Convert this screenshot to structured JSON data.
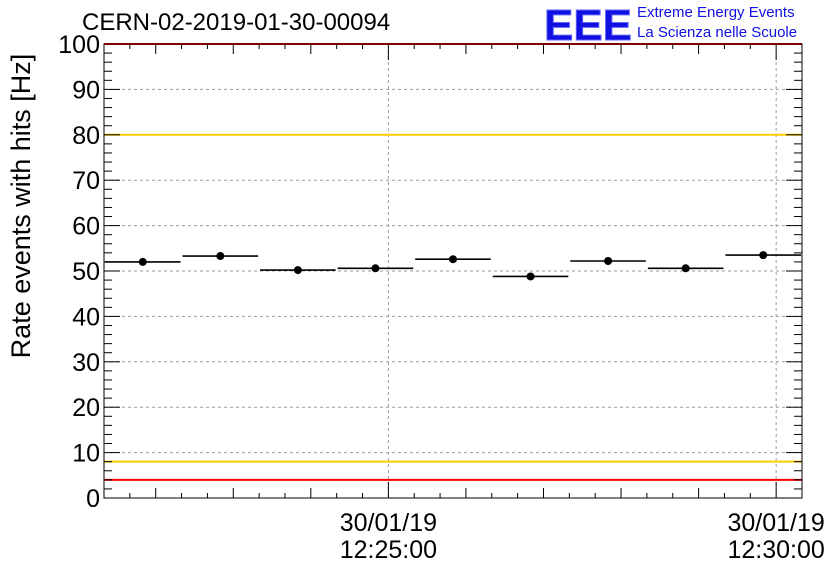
{
  "logo": {
    "mark": "EEE",
    "line1": "Extreme Energy Events",
    "line2": "La Scienza nelle Scuole",
    "color": "#1010e0"
  },
  "chart_data": {
    "type": "scatter",
    "title": "CERN-02-2019-01-30-00094",
    "ylabel": "Rate events with hits [Hz]",
    "xlabel": "",
    "ylim": [
      0,
      100
    ],
    "yticks": [
      0,
      10,
      20,
      30,
      40,
      50,
      60,
      70,
      80,
      90,
      100
    ],
    "xlim": [
      "30/01/19 12:21:20",
      "30/01/19 12:30:20"
    ],
    "xtick_labels": [
      {
        "x": "30/01/19 12:25:00",
        "date": "30/01/19",
        "time": "12:25:00"
      },
      {
        "x": "30/01/19 12:30:00",
        "date": "30/01/19",
        "time": "12:30:00"
      }
    ],
    "grid": true,
    "points": [
      {
        "x_start": "12:21:20",
        "x_end": "12:22:20",
        "y": 52.0
      },
      {
        "x_start": "12:22:20",
        "x_end": "12:23:20",
        "y": 53.3
      },
      {
        "x_start": "12:23:20",
        "x_end": "12:24:20",
        "y": 50.2
      },
      {
        "x_start": "12:24:20",
        "x_end": "12:25:20",
        "y": 50.6
      },
      {
        "x_start": "12:25:20",
        "x_end": "12:26:20",
        "y": 52.6
      },
      {
        "x_start": "12:26:20",
        "x_end": "12:27:20",
        "y": 48.8
      },
      {
        "x_start": "12:27:20",
        "x_end": "12:28:20",
        "y": 52.2
      },
      {
        "x_start": "12:28:20",
        "x_end": "12:29:20",
        "y": 50.6
      },
      {
        "x_start": "12:29:20",
        "x_end": "12:30:20",
        "y": 53.5
      }
    ],
    "reference_lines": [
      {
        "y": 100,
        "color": "#ff0000"
      },
      {
        "y": 80,
        "color": "#ffcc00"
      },
      {
        "y": 8,
        "color": "#ffcc00"
      },
      {
        "y": 4,
        "color": "#ff0000"
      }
    ]
  }
}
